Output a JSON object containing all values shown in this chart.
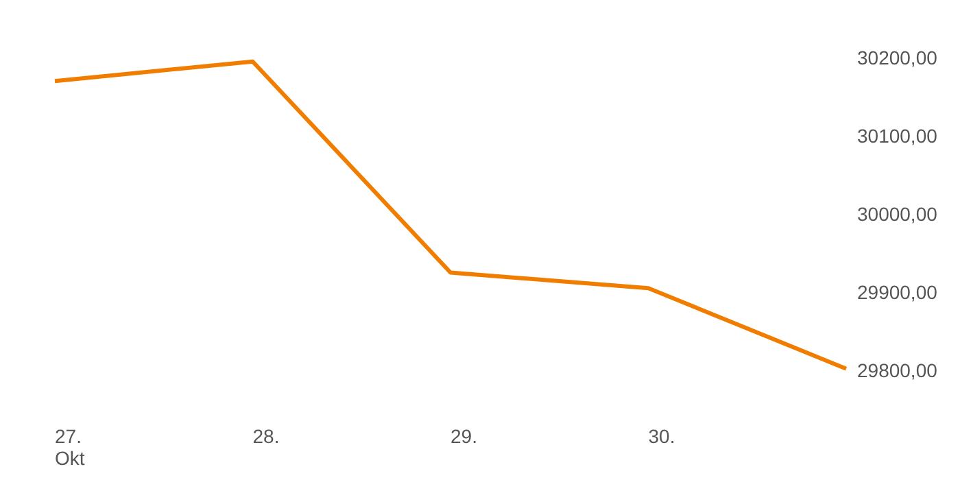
{
  "chart_data": {
    "type": "line",
    "categories": [
      "27.\nOkt",
      "28.",
      "29.",
      "30.",
      null
    ],
    "series": [
      {
        "color": "#f07d00",
        "values": [
          30170,
          30195,
          29925,
          29905,
          29802
        ]
      }
    ],
    "ylim": [
      29800,
      30200
    ],
    "yticks": [
      {
        "value": 29800,
        "label": "29800,00"
      },
      {
        "value": 29900,
        "label": "29900,00"
      },
      {
        "value": 30000,
        "label": "30000,00"
      },
      {
        "value": 30100,
        "label": "30100,00"
      },
      {
        "value": 30200,
        "label": "30200,00"
      }
    ],
    "grid": false
  }
}
